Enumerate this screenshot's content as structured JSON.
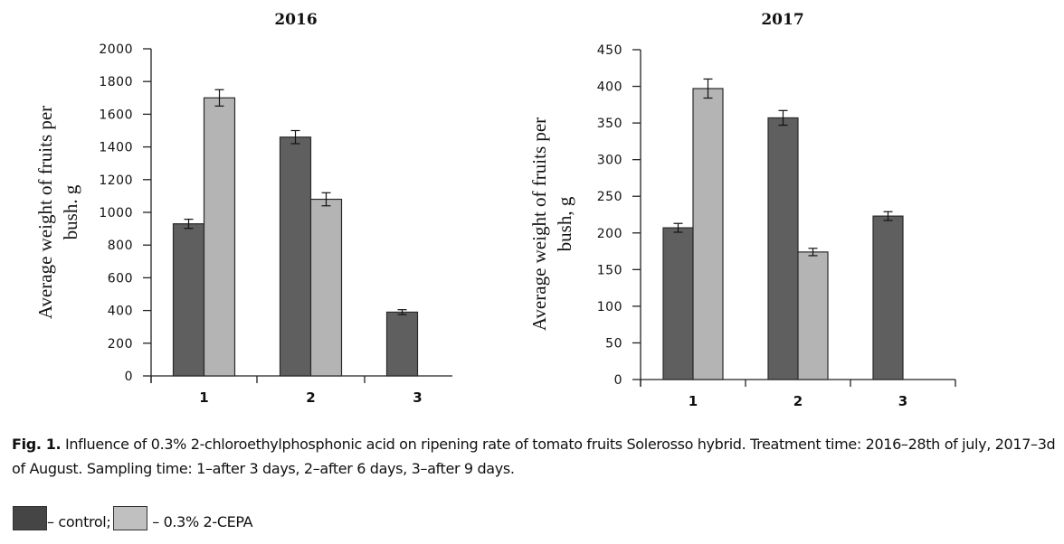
{
  "chart_data": [
    {
      "type": "bar",
      "title": "2016",
      "xlabel": "",
      "ylabel": "Average weight of fruits per bush. g",
      "ylabel_lines": [
        "Average weight of fruits per",
        "bush. g"
      ],
      "categories": [
        "1",
        "2",
        "3"
      ],
      "ylim": [
        0,
        2000
      ],
      "yticks": [
        0,
        200,
        400,
        600,
        800,
        1000,
        1200,
        1400,
        1600,
        1800,
        2000
      ],
      "grid": false,
      "series": [
        {
          "name": "control",
          "color": "#5f5f5f",
          "values": [
            930,
            1460,
            390
          ],
          "errors": [
            28,
            40,
            15
          ]
        },
        {
          "name": "0.3% 2-CEPA",
          "color": "#b4b4b4",
          "values": [
            1700,
            1080,
            null
          ],
          "errors": [
            50,
            40,
            null
          ]
        }
      ]
    },
    {
      "type": "bar",
      "title": "2017",
      "xlabel": "",
      "ylabel": "Average weight of fruits per bush, g",
      "ylabel_lines": [
        "Average weight of fruits per",
        "bush, g"
      ],
      "categories": [
        "1",
        "2",
        "3"
      ],
      "ylim": [
        0,
        450
      ],
      "yticks": [
        0,
        50,
        100,
        150,
        200,
        250,
        300,
        350,
        400,
        450
      ],
      "grid": false,
      "series": [
        {
          "name": "control",
          "color": "#5f5f5f",
          "values": [
            207,
            357,
            223
          ],
          "errors": [
            6,
            10,
            6
          ]
        },
        {
          "name": "0.3% 2-CEPA",
          "color": "#b4b4b4",
          "values": [
            397,
            174,
            null
          ],
          "errors": [
            13,
            5,
            null
          ]
        }
      ]
    }
  ],
  "caption": {
    "label": "Fig. 1.",
    "text": " Influence of 0.3% 2-chloroethylphosphonic acid on ripening rate of tomato fruits Solerosso hybrid. Treatment time: 2016–28th of july, 2017–3d of August. Sampling time: 1–after 3 days, 2–after 6 days, 3–after 9 days."
  },
  "legend": [
    {
      "label": "– control;",
      "color": "#454545"
    },
    {
      "label": " – 0.3% 2-CEPA",
      "color": "#c0c0c0"
    }
  ]
}
